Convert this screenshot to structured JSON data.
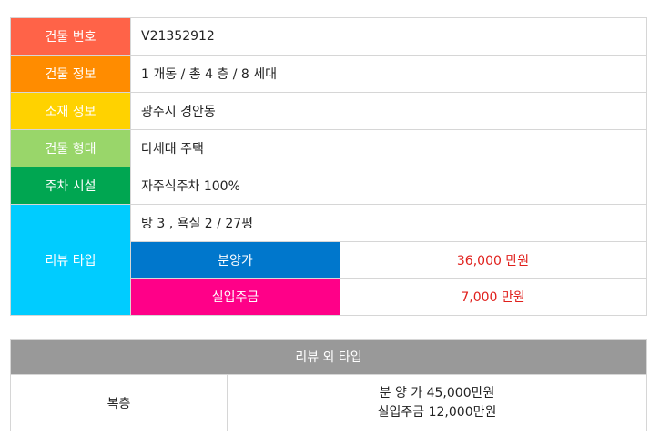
{
  "building_table": {
    "rows": [
      {
        "label": "건물 번호",
        "value": "V21352912",
        "color": "#ff6348"
      },
      {
        "label": "건물 정보",
        "value": "1 개동 / 총 4 층 / 8 세대",
        "color": "#ff8c00"
      },
      {
        "label": "소재 정보",
        "value": "광주시 경안동",
        "color": "#ffd200"
      },
      {
        "label": "건물 형태",
        "value": "다세대 주택",
        "color": "#99d66a"
      },
      {
        "label": "주차 시설",
        "value": "자주식주차 100%",
        "color": "#00a651"
      }
    ],
    "review": {
      "label": "리뷰 타입",
      "color": "#00ccff",
      "rooms": "방 3 , 욕실 2 / 27평",
      "prices": [
        {
          "label": "분양가",
          "value": "36,000 만원",
          "color": "#0077cc"
        },
        {
          "label": "실입주금",
          "value": "7,000 만원",
          "color": "#ff0088"
        }
      ]
    }
  },
  "other_table": {
    "header": "리뷰 외 타입",
    "type": "복층",
    "line1": "분 양 가 45,000만원",
    "line2": "실입주금 12,000만원"
  }
}
